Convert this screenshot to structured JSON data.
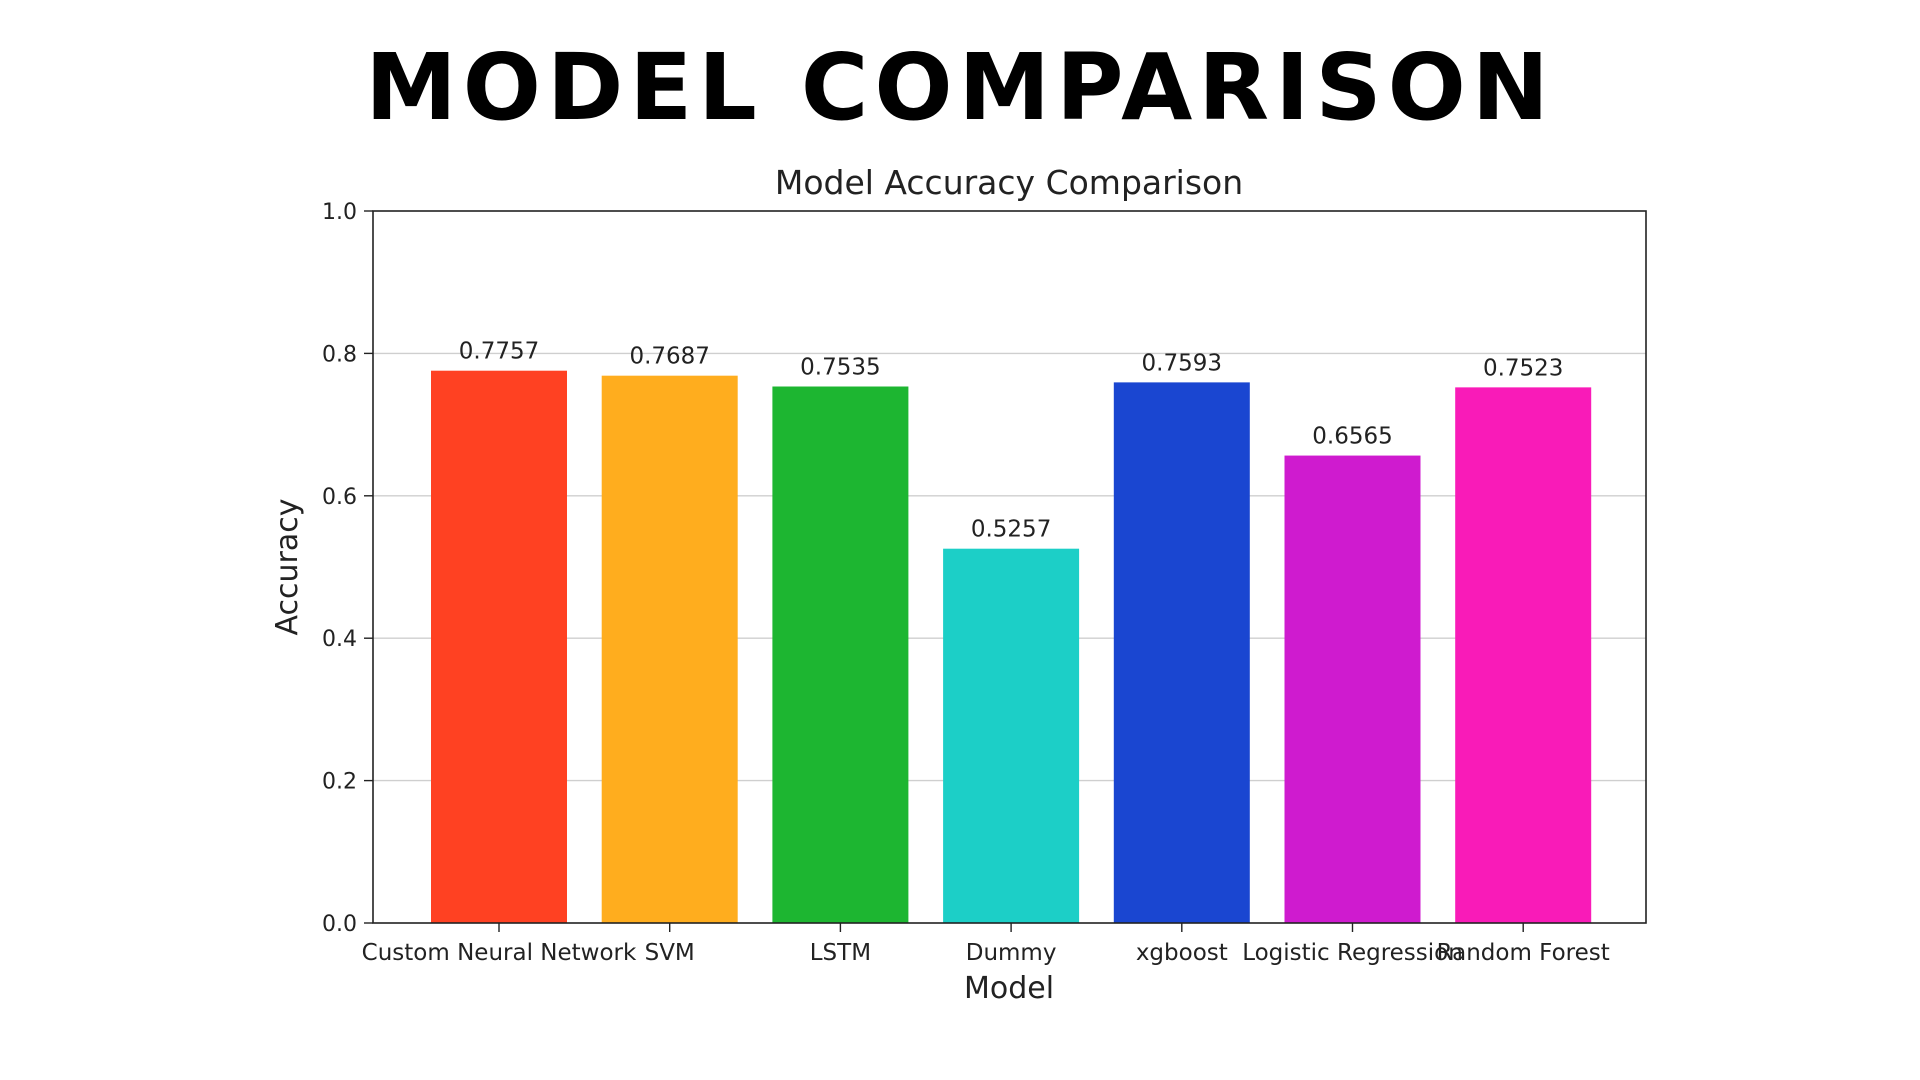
{
  "header": {
    "title": "MODEL COMPARISON"
  },
  "chart_data": {
    "type": "bar",
    "title": "Model Accuracy Comparison",
    "xlabel": "Model",
    "ylabel": "Accuracy",
    "ylim": [
      0,
      1.0
    ],
    "yticks": [
      "0.0",
      "0.2",
      "0.4",
      "0.6",
      "0.8",
      "1.0"
    ],
    "grid": "y",
    "categories": [
      "Custom Neural Network",
      "SVM",
      "LSTM",
      "Dummy",
      "xgboost",
      "Logistic Regression",
      "Random Forest"
    ],
    "values": [
      0.7757,
      0.7687,
      0.7535,
      0.5257,
      0.7593,
      0.6565,
      0.7523
    ],
    "value_labels": [
      "0.7757",
      "0.7687",
      "0.7535",
      "0.5257",
      "0.7593",
      "0.6565",
      "0.7523"
    ],
    "colors": [
      "#ff4122",
      "#ffad1e",
      "#1db631",
      "#1ccfc7",
      "#1a46d1",
      "#cf1bcf",
      "#f91bb8"
    ]
  }
}
